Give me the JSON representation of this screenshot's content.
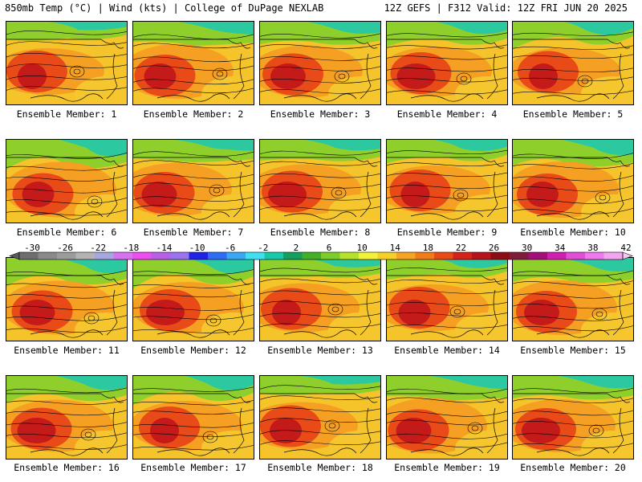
{
  "header": {
    "left": "850mb Temp (°C) | Wind (kts) | College of DuPage NEXLAB",
    "right": "12Z GEFS | F312 Valid: 12Z FRI JUN 20 2025"
  },
  "colorbar": {
    "labels": [
      "-30",
      "-26",
      "-22",
      "-18",
      "-14",
      "-10",
      "-6",
      "-2",
      "2",
      "6",
      "10",
      "14",
      "18",
      "22",
      "26",
      "30",
      "34",
      "38",
      "42"
    ],
    "colors": [
      "#6e6e6e",
      "#8a8a8a",
      "#9c9c9c",
      "#b4b4b4",
      "#a7a7e0",
      "#d873f0",
      "#ee4ef0",
      "#b85fe6",
      "#9b73f0",
      "#2222e6",
      "#2f6cf5",
      "#3aa7f5",
      "#40e0f0",
      "#17c9a8",
      "#14a05a",
      "#43b02a",
      "#7ccd29",
      "#b5e22a",
      "#f2f23a",
      "#f5d02a",
      "#f5a423",
      "#f07b1a",
      "#e84a18",
      "#d6231a",
      "#b5141a",
      "#8c0e14",
      "#7e1c3a",
      "#a30f78",
      "#d01fb0",
      "#e04fd6",
      "#f078ee",
      "#f3a6f0"
    ]
  },
  "members": [
    {
      "caption": "Ensemble Member: 1"
    },
    {
      "caption": "Ensemble Member: 2"
    },
    {
      "caption": "Ensemble Member: 3"
    },
    {
      "caption": "Ensemble Member: 4"
    },
    {
      "caption": "Ensemble Member: 5"
    },
    {
      "caption": "Ensemble Member: 6"
    },
    {
      "caption": "Ensemble Member: 7"
    },
    {
      "caption": "Ensemble Member: 8"
    },
    {
      "caption": "Ensemble Member: 9"
    },
    {
      "caption": "Ensemble Member: 10"
    },
    {
      "caption": "Ensemble Member: 11"
    },
    {
      "caption": "Ensemble Member: 12"
    },
    {
      "caption": "Ensemble Member: 13"
    },
    {
      "caption": "Ensemble Member: 14"
    },
    {
      "caption": "Ensemble Member: 15"
    },
    {
      "caption": "Ensemble Member: 16"
    },
    {
      "caption": "Ensemble Member: 17"
    },
    {
      "caption": "Ensemble Member: 18"
    },
    {
      "caption": "Ensemble Member: 19"
    },
    {
      "caption": "Ensemble Member: 20"
    }
  ]
}
